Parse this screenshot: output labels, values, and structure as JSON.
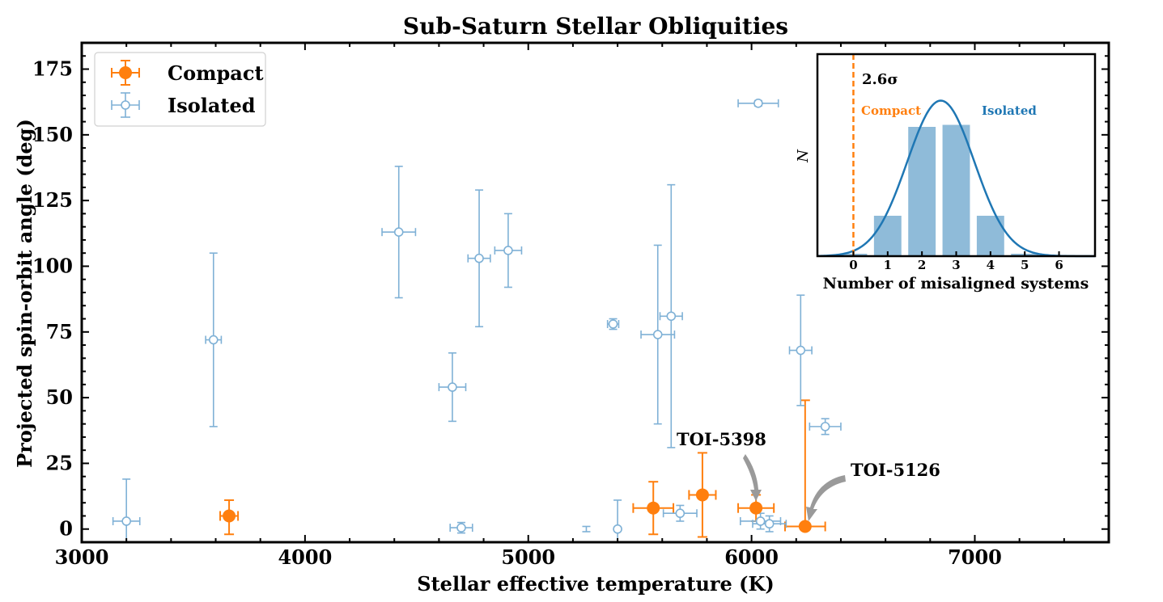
{
  "chart_data": {
    "type": "scatter",
    "title": "Sub-Saturn Stellar Obliquities",
    "xlabel": "Stellar effective temperature (K)",
    "ylabel": "Projected spin-orbit angle (deg)",
    "xlim": [
      3000,
      7600
    ],
    "ylim": [
      -5,
      185
    ],
    "xticks": [
      3000,
      4000,
      5000,
      6000,
      7000
    ],
    "yticks": [
      0,
      25,
      50,
      75,
      100,
      125,
      150,
      175
    ],
    "legend": {
      "placement": "top-left",
      "entries": [
        "Compact",
        "Isolated"
      ]
    },
    "series": [
      {
        "name": "Compact",
        "color": "#ff7f0e",
        "marker": "filled-circle",
        "points": [
          {
            "x": 3660,
            "y": 5,
            "xerr": 40,
            "yerr_low": 7,
            "yerr_high": 6
          },
          {
            "x": 5560,
            "y": 8,
            "xerr": 90,
            "yerr_low": 10,
            "yerr_high": 10
          },
          {
            "x": 5780,
            "y": 13,
            "xerr": 60,
            "yerr_low": 16,
            "yerr_high": 16
          },
          {
            "x": 6020,
            "y": 8,
            "xerr": 80,
            "yerr_low": 5,
            "yerr_high": 5
          },
          {
            "x": 6240,
            "y": 1,
            "xerr": 90,
            "yerr_low": 0,
            "yerr_high": 48
          }
        ]
      },
      {
        "name": "Isolated",
        "color": "#1f77b4",
        "marker": "open-circle",
        "points": [
          {
            "x": 3200,
            "y": 3,
            "xerr": 60,
            "yerr_low": 8,
            "yerr_high": 16
          },
          {
            "x": 3590,
            "y": 72,
            "xerr": 35,
            "yerr_low": 33,
            "yerr_high": 33
          },
          {
            "x": 4420,
            "y": 113,
            "xerr": 75,
            "yerr_low": 25,
            "yerr_high": 25
          },
          {
            "x": 4660,
            "y": 54,
            "xerr": 60,
            "yerr_low": 13,
            "yerr_high": 13
          },
          {
            "x": 4700,
            "y": 0.5,
            "xerr": 50,
            "yerr_low": 2,
            "yerr_high": 2
          },
          {
            "x": 4780,
            "y": 103,
            "xerr": 50,
            "yerr_low": 26,
            "yerr_high": 26
          },
          {
            "x": 4910,
            "y": 106,
            "xerr": 60,
            "yerr_low": 14,
            "yerr_high": 14
          },
          {
            "x": 5260,
            "y": 0,
            "xerr": 0,
            "yerr_low": 1,
            "yerr_high": 1
          },
          {
            "x": 5380,
            "y": 78,
            "xerr": 25,
            "yerr_low": 2,
            "yerr_high": 2
          },
          {
            "x": 5400,
            "y": 0,
            "xerr": 0,
            "yerr_low": 5,
            "yerr_high": 11
          },
          {
            "x": 5580,
            "y": 74,
            "xerr": 75,
            "yerr_low": 34,
            "yerr_high": 34
          },
          {
            "x": 5640,
            "y": 81,
            "xerr": 50,
            "yerr_low": 50,
            "yerr_high": 50
          },
          {
            "x": 5680,
            "y": 6,
            "xerr": 75,
            "yerr_low": 3,
            "yerr_high": 3
          },
          {
            "x": 6030,
            "y": 162,
            "xerr": 90,
            "yerr_low": 1,
            "yerr_high": 1
          },
          {
            "x": 6040,
            "y": 3,
            "xerr": 90,
            "yerr_low": 3,
            "yerr_high": 3
          },
          {
            "x": 6080,
            "y": 2,
            "xerr": 75,
            "yerr_low": 3,
            "yerr_high": 3
          },
          {
            "x": 6220,
            "y": 68,
            "xerr": 50,
            "yerr_low": 21,
            "yerr_high": 21
          },
          {
            "x": 6330,
            "y": 39,
            "xerr": 70,
            "yerr_low": 3,
            "yerr_high": 3
          }
        ]
      }
    ],
    "annotations": [
      {
        "text": "TOI-5398",
        "x": 6020,
        "y": 8
      },
      {
        "text": "TOI-5126",
        "x": 6240,
        "y": 1
      }
    ],
    "inset": {
      "type": "bar",
      "xlabel": "Number of misaligned systems",
      "ylabel": "N",
      "categories": [
        "0",
        "1",
        "2",
        "3",
        "4",
        "5",
        "6"
      ],
      "values": [
        1.2,
        20,
        64,
        65,
        20,
        1.2,
        0.1
      ],
      "ylim": [
        0,
        100
      ],
      "bar_color": "#8fbbd9",
      "curve_color": "#1f77b4",
      "curve": {
        "mean": 2.55,
        "sigma": 0.98,
        "peak": 77
      },
      "compact_line_x": 0,
      "compact_line_color": "#ff7f0e",
      "sigma_label": "2.6σ",
      "compact_label": "Compact",
      "isolated_label": "Isolated"
    }
  }
}
